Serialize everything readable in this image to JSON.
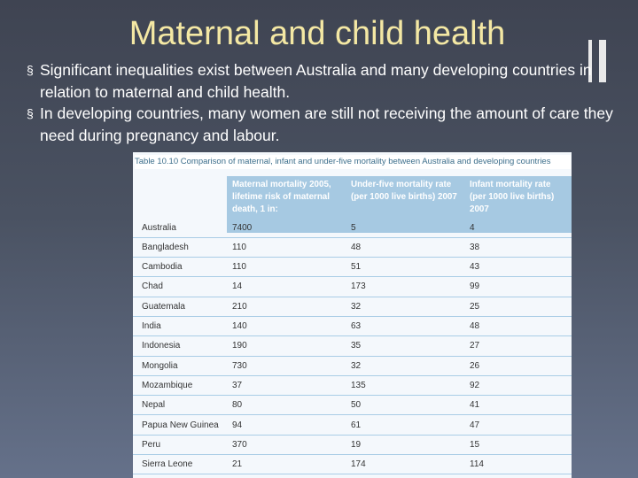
{
  "slide": {
    "title": "Maternal and child health",
    "bullet_marker": "§",
    "bullets": [
      "Significant inequalities exist between Australia and many developing countries in relation to maternal and child health.",
      "In developing countries, many women are still not receiving the amount of care they need during pregnancy and labour."
    ]
  },
  "table": {
    "caption": "Table 10.10 Comparison of maternal, infant and under-five mortality between Australia and developing countries",
    "headers": [
      "Maternal mortality 2005, lifetime risk of maternal death, 1 in:",
      "Under-five mortality rate (per 1000 live births) 2007",
      "Infant mortality rate (per 1000 live births) 2007"
    ],
    "rows": [
      {
        "country": "Australia",
        "maternal": "7400",
        "under_five": "5",
        "infant": "4"
      },
      {
        "country": "Bangladesh",
        "maternal": "110",
        "under_five": "48",
        "infant": "38"
      },
      {
        "country": "Cambodia",
        "maternal": "110",
        "under_five": "51",
        "infant": "43"
      },
      {
        "country": "Chad",
        "maternal": "14",
        "under_five": "173",
        "infant": "99"
      },
      {
        "country": "Guatemala",
        "maternal": "210",
        "under_five": "32",
        "infant": "25"
      },
      {
        "country": "India",
        "maternal": "140",
        "under_five": "63",
        "infant": "48"
      },
      {
        "country": "Indonesia",
        "maternal": "190",
        "under_five": "35",
        "infant": "27"
      },
      {
        "country": "Mongolia",
        "maternal": "730",
        "under_five": "32",
        "infant": "26"
      },
      {
        "country": "Mozambique",
        "maternal": "37",
        "under_five": "135",
        "infant": "92"
      },
      {
        "country": "Nepal",
        "maternal": "80",
        "under_five": "50",
        "infant": "41"
      },
      {
        "country": "Papua New Guinea",
        "maternal": "94",
        "under_five": "61",
        "infant": "47"
      },
      {
        "country": "Peru",
        "maternal": "370",
        "under_five": "19",
        "infant": "15"
      },
      {
        "country": "Sierra Leone",
        "maternal": "21",
        "under_five": "174",
        "infant": "114"
      }
    ]
  },
  "colors": {
    "title": "#f4e8a4",
    "header_band": "#a6c9e2",
    "caption_text": "#3d6f8c",
    "row_divider": "#a9cde6"
  }
}
